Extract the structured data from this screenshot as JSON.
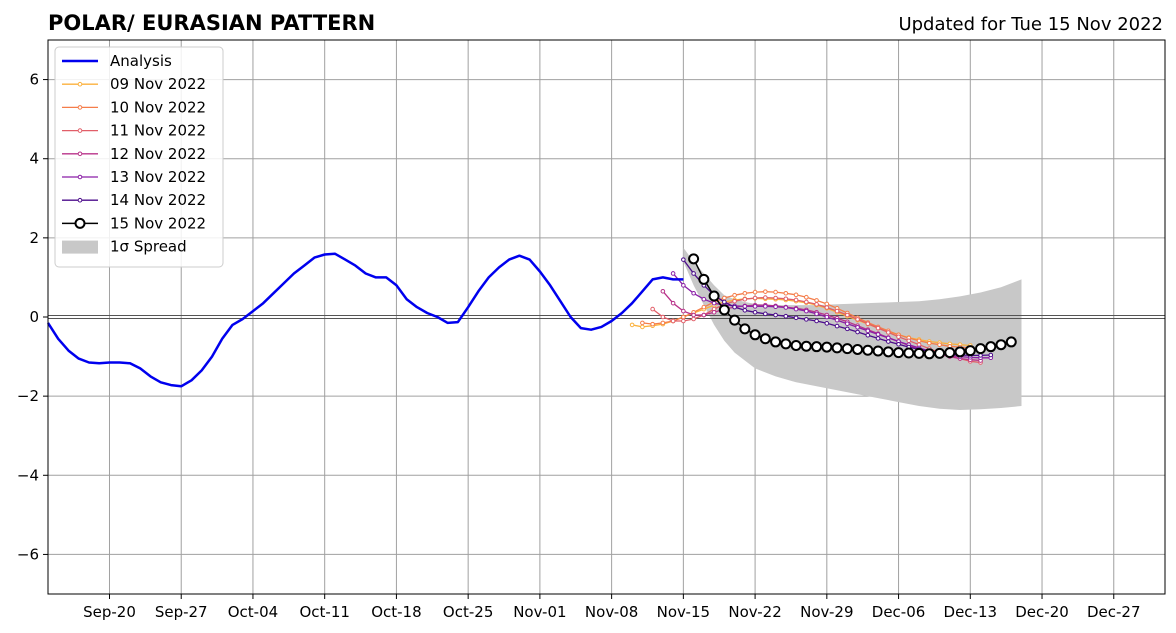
{
  "chart_data": {
    "type": "line",
    "title": "POLAR/ EURASIAN  PATTERN",
    "subtitle": "Updated for Tue 15 Nov 2022",
    "xlabel": "",
    "ylabel": "",
    "x_range": [
      "2022-09-14",
      "2023-01-01"
    ],
    "ylim": [
      -7,
      7
    ],
    "grid": true,
    "legend_position": "top-left",
    "x_tick_labels": [
      {
        "date": "2022-09-20",
        "label": "Sep-20"
      },
      {
        "date": "2022-09-27",
        "label": "Sep-27"
      },
      {
        "date": "2022-10-04",
        "label": "Oct-04"
      },
      {
        "date": "2022-10-11",
        "label": "Oct-11"
      },
      {
        "date": "2022-10-18",
        "label": "Oct-18"
      },
      {
        "date": "2022-10-25",
        "label": "Oct-25"
      },
      {
        "date": "2022-11-01",
        "label": "Nov-01"
      },
      {
        "date": "2022-11-08",
        "label": "Nov-08"
      },
      {
        "date": "2022-11-15",
        "label": "Nov-15"
      },
      {
        "date": "2022-11-22",
        "label": "Nov-22"
      },
      {
        "date": "2022-11-29",
        "label": "Nov-29"
      },
      {
        "date": "2022-12-06",
        "label": "Dec-06"
      },
      {
        "date": "2022-12-13",
        "label": "Dec-13"
      },
      {
        "date": "2022-12-20",
        "label": "Dec-20"
      },
      {
        "date": "2022-12-27",
        "label": "Dec-27"
      }
    ],
    "y_ticks": [
      {
        "value": 6,
        "label": "6"
      },
      {
        "value": 4,
        "label": "4"
      },
      {
        "value": 2,
        "label": "2"
      },
      {
        "value": 0,
        "label": "0"
      },
      {
        "value": -2,
        "label": "−2"
      },
      {
        "value": -4,
        "label": "−4"
      },
      {
        "value": -6,
        "label": "−6"
      }
    ],
    "spread": {
      "name": "1σ Spread",
      "color": "#c8c8c8",
      "dates": [
        "2022-11-15",
        "2022-11-16",
        "2022-11-17",
        "2022-11-18",
        "2022-11-19",
        "2022-11-20",
        "2022-11-21",
        "2022-11-22",
        "2022-11-24",
        "2022-11-26",
        "2022-11-28",
        "2022-11-30",
        "2022-12-02",
        "2022-12-04",
        "2022-12-06",
        "2022-12-08",
        "2022-12-10",
        "2022-12-12",
        "2022-12-14",
        "2022-12-16",
        "2022-12-18"
      ],
      "upper": [
        1.75,
        1.4,
        1.1,
        0.8,
        0.55,
        0.45,
        0.38,
        0.33,
        0.3,
        0.3,
        0.3,
        0.32,
        0.34,
        0.36,
        0.38,
        0.4,
        0.45,
        0.52,
        0.62,
        0.75,
        0.95
      ],
      "lower": [
        1.4,
        0.8,
        0.3,
        -0.2,
        -0.6,
        -0.9,
        -1.1,
        -1.3,
        -1.5,
        -1.65,
        -1.75,
        -1.85,
        -1.95,
        -2.05,
        -2.15,
        -2.25,
        -2.32,
        -2.35,
        -2.33,
        -2.3,
        -2.25
      ]
    },
    "series": [
      {
        "name": "Analysis",
        "color": "#0000ee",
        "marker": "none",
        "dates": [
          "2022-09-14",
          "2022-09-15",
          "2022-09-16",
          "2022-09-17",
          "2022-09-18",
          "2022-09-19",
          "2022-09-20",
          "2022-09-21",
          "2022-09-22",
          "2022-09-23",
          "2022-09-24",
          "2022-09-25",
          "2022-09-26",
          "2022-09-27",
          "2022-09-28",
          "2022-09-29",
          "2022-09-30",
          "2022-10-01",
          "2022-10-02",
          "2022-10-03",
          "2022-10-04",
          "2022-10-05",
          "2022-10-06",
          "2022-10-07",
          "2022-10-08",
          "2022-10-09",
          "2022-10-10",
          "2022-10-11",
          "2022-10-12",
          "2022-10-13",
          "2022-10-14",
          "2022-10-15",
          "2022-10-16",
          "2022-10-17",
          "2022-10-18",
          "2022-10-19",
          "2022-10-20",
          "2022-10-21",
          "2022-10-22",
          "2022-10-23",
          "2022-10-24",
          "2022-10-25",
          "2022-10-26",
          "2022-10-27",
          "2022-10-28",
          "2022-10-29",
          "2022-10-30",
          "2022-10-31",
          "2022-11-01",
          "2022-11-02",
          "2022-11-03",
          "2022-11-04",
          "2022-11-05",
          "2022-11-06",
          "2022-11-07",
          "2022-11-08",
          "2022-11-09",
          "2022-11-10",
          "2022-11-11",
          "2022-11-12",
          "2022-11-13",
          "2022-11-14",
          "2022-11-15"
        ],
        "values": [
          -0.15,
          -0.55,
          -0.85,
          -1.05,
          -1.15,
          -1.17,
          -1.15,
          -1.15,
          -1.17,
          -1.3,
          -1.5,
          -1.65,
          -1.72,
          -1.75,
          -1.6,
          -1.35,
          -1.0,
          -0.55,
          -0.2,
          -0.05,
          0.15,
          0.35,
          0.6,
          0.85,
          1.1,
          1.3,
          1.5,
          1.58,
          1.6,
          1.45,
          1.3,
          1.1,
          1.0,
          1.0,
          0.8,
          0.45,
          0.25,
          0.1,
          0.0,
          -0.15,
          -0.13,
          0.25,
          0.65,
          1.0,
          1.25,
          1.45,
          1.55,
          1.45,
          1.15,
          0.8,
          0.4,
          0.0,
          -0.28,
          -0.32,
          -0.25,
          -0.1,
          0.1,
          0.35,
          0.65,
          0.95,
          1.0,
          0.95,
          0.95
        ]
      },
      {
        "name": "09 Nov 2022",
        "color": "#fbb13c",
        "marker": "dot",
        "dates": [
          "2022-11-10",
          "2022-11-11",
          "2022-11-12",
          "2022-11-13",
          "2022-11-14",
          "2022-11-15",
          "2022-11-16",
          "2022-11-17",
          "2022-11-18",
          "2022-11-19",
          "2022-11-20",
          "2022-11-21",
          "2022-11-22",
          "2022-11-23",
          "2022-11-24",
          "2022-11-25",
          "2022-11-26",
          "2022-11-27",
          "2022-11-28",
          "2022-11-29",
          "2022-11-30",
          "2022-12-01",
          "2022-12-02",
          "2022-12-03",
          "2022-12-04",
          "2022-12-05",
          "2022-12-06",
          "2022-12-07",
          "2022-12-08",
          "2022-12-09",
          "2022-12-10",
          "2022-12-11",
          "2022-12-12",
          "2022-12-13"
        ],
        "values": [
          -0.2,
          -0.25,
          -0.22,
          -0.18,
          -0.1,
          0.0,
          0.1,
          0.2,
          0.3,
          0.38,
          0.43,
          0.46,
          0.47,
          0.46,
          0.45,
          0.43,
          0.4,
          0.36,
          0.3,
          0.22,
          0.12,
          0.02,
          -0.08,
          -0.18,
          -0.28,
          -0.38,
          -0.45,
          -0.52,
          -0.57,
          -0.62,
          -0.65,
          -0.68,
          -0.7,
          -0.72
        ]
      },
      {
        "name": "10 Nov 2022",
        "color": "#f57d4a",
        "marker": "dot",
        "dates": [
          "2022-11-11",
          "2022-11-12",
          "2022-11-13",
          "2022-11-14",
          "2022-11-15",
          "2022-11-16",
          "2022-11-17",
          "2022-11-18",
          "2022-11-19",
          "2022-11-20",
          "2022-11-21",
          "2022-11-22",
          "2022-11-23",
          "2022-11-24",
          "2022-11-25",
          "2022-11-26",
          "2022-11-27",
          "2022-11-28",
          "2022-11-29",
          "2022-11-30",
          "2022-12-01",
          "2022-12-02",
          "2022-12-03",
          "2022-12-04",
          "2022-12-05",
          "2022-12-06",
          "2022-12-07",
          "2022-12-08",
          "2022-12-09",
          "2022-12-10",
          "2022-12-11",
          "2022-12-12",
          "2022-12-13"
        ],
        "values": [
          -0.15,
          -0.18,
          -0.15,
          -0.1,
          0.0,
          0.12,
          0.25,
          0.38,
          0.48,
          0.55,
          0.6,
          0.63,
          0.64,
          0.63,
          0.6,
          0.56,
          0.5,
          0.42,
          0.33,
          0.22,
          0.1,
          -0.02,
          -0.14,
          -0.25,
          -0.35,
          -0.45,
          -0.53,
          -0.6,
          -0.66,
          -0.7,
          -0.74,
          -0.76,
          -0.78
        ]
      },
      {
        "name": "11 Nov 2022",
        "color": "#e15e68",
        "marker": "dot",
        "dates": [
          "2022-11-12",
          "2022-11-13",
          "2022-11-14",
          "2022-11-15",
          "2022-11-16",
          "2022-11-17",
          "2022-11-18",
          "2022-11-19",
          "2022-11-20",
          "2022-11-21",
          "2022-11-22",
          "2022-11-23",
          "2022-11-24",
          "2022-11-25",
          "2022-11-26",
          "2022-11-27",
          "2022-11-28",
          "2022-11-29",
          "2022-11-30",
          "2022-12-01",
          "2022-12-02",
          "2022-12-03",
          "2022-12-04",
          "2022-12-05",
          "2022-12-06",
          "2022-12-07",
          "2022-12-08",
          "2022-12-09",
          "2022-12-10",
          "2022-12-11",
          "2022-12-12",
          "2022-12-13",
          "2022-12-14"
        ],
        "values": [
          0.2,
          0.0,
          -0.1,
          -0.1,
          -0.05,
          0.05,
          0.2,
          0.32,
          0.4,
          0.45,
          0.48,
          0.49,
          0.48,
          0.46,
          0.43,
          0.38,
          0.32,
          0.24,
          0.15,
          0.05,
          -0.06,
          -0.17,
          -0.28,
          -0.39,
          -0.5,
          -0.6,
          -0.7,
          -0.8,
          -0.9,
          -0.98,
          -1.05,
          -1.12,
          -1.15
        ]
      },
      {
        "name": "12 Nov 2022",
        "color": "#b83289",
        "marker": "dot",
        "dates": [
          "2022-11-13",
          "2022-11-14",
          "2022-11-15",
          "2022-11-16",
          "2022-11-17",
          "2022-11-18",
          "2022-11-19",
          "2022-11-20",
          "2022-11-21",
          "2022-11-22",
          "2022-11-23",
          "2022-11-24",
          "2022-11-25",
          "2022-11-26",
          "2022-11-27",
          "2022-11-28",
          "2022-11-29",
          "2022-11-30",
          "2022-12-01",
          "2022-12-02",
          "2022-12-03",
          "2022-12-04",
          "2022-12-05",
          "2022-12-06",
          "2022-12-07",
          "2022-12-08",
          "2022-12-09",
          "2022-12-10",
          "2022-12-11",
          "2022-12-12",
          "2022-12-13",
          "2022-12-14"
        ],
        "values": [
          0.65,
          0.35,
          0.15,
          0.05,
          0.05,
          0.12,
          0.2,
          0.25,
          0.28,
          0.3,
          0.3,
          0.28,
          0.25,
          0.22,
          0.18,
          0.12,
          0.05,
          -0.03,
          -0.12,
          -0.22,
          -0.32,
          -0.42,
          -0.52,
          -0.62,
          -0.72,
          -0.8,
          -0.88,
          -0.95,
          -1.0,
          -1.05,
          -1.08,
          -1.1
        ]
      },
      {
        "name": "13 Nov 2022",
        "color": "#8a1ea6",
        "marker": "dot",
        "dates": [
          "2022-11-14",
          "2022-11-15",
          "2022-11-16",
          "2022-11-17",
          "2022-11-18",
          "2022-11-19",
          "2022-11-20",
          "2022-11-21",
          "2022-11-22",
          "2022-11-23",
          "2022-11-24",
          "2022-11-25",
          "2022-11-26",
          "2022-11-27",
          "2022-11-28",
          "2022-11-29",
          "2022-11-30",
          "2022-12-01",
          "2022-12-02",
          "2022-12-03",
          "2022-12-04",
          "2022-12-05",
          "2022-12-06",
          "2022-12-07",
          "2022-12-08",
          "2022-12-09",
          "2022-12-10",
          "2022-12-11",
          "2022-12-12",
          "2022-12-13",
          "2022-12-14",
          "2022-12-15"
        ],
        "values": [
          1.1,
          0.8,
          0.6,
          0.45,
          0.35,
          0.3,
          0.28,
          0.27,
          0.27,
          0.27,
          0.26,
          0.24,
          0.2,
          0.15,
          0.08,
          0.0,
          -0.08,
          -0.17,
          -0.26,
          -0.35,
          -0.44,
          -0.53,
          -0.62,
          -0.7,
          -0.78,
          -0.86,
          -0.92,
          -0.97,
          -1.0,
          -1.02,
          -1.03,
          -1.03
        ]
      },
      {
        "name": "14 Nov 2022",
        "color": "#4b0c8b",
        "marker": "dot",
        "dates": [
          "2022-11-15",
          "2022-11-16",
          "2022-11-17",
          "2022-11-18",
          "2022-11-19",
          "2022-11-20",
          "2022-11-21",
          "2022-11-22",
          "2022-11-23",
          "2022-11-24",
          "2022-11-25",
          "2022-11-26",
          "2022-11-27",
          "2022-11-28",
          "2022-11-29",
          "2022-11-30",
          "2022-12-01",
          "2022-12-02",
          "2022-12-03",
          "2022-12-04",
          "2022-12-05",
          "2022-12-06",
          "2022-12-07",
          "2022-12-08",
          "2022-12-09",
          "2022-12-10",
          "2022-12-11",
          "2022-12-12",
          "2022-12-13",
          "2022-12-14",
          "2022-12-15"
        ],
        "values": [
          1.45,
          1.1,
          0.8,
          0.55,
          0.38,
          0.25,
          0.17,
          0.12,
          0.08,
          0.05,
          0.02,
          -0.02,
          -0.06,
          -0.1,
          -0.16,
          -0.23,
          -0.3,
          -0.38,
          -0.46,
          -0.54,
          -0.62,
          -0.69,
          -0.76,
          -0.82,
          -0.87,
          -0.91,
          -0.94,
          -0.96,
          -0.97,
          -0.97,
          -0.96
        ]
      },
      {
        "name": "15 Nov 2022",
        "color": "#000000",
        "marker": "circle",
        "dates": [
          "2022-11-16",
          "2022-11-17",
          "2022-11-18",
          "2022-11-19",
          "2022-11-20",
          "2022-11-21",
          "2022-11-22",
          "2022-11-23",
          "2022-11-24",
          "2022-11-25",
          "2022-11-26",
          "2022-11-27",
          "2022-11-28",
          "2022-11-29",
          "2022-11-30",
          "2022-12-01",
          "2022-12-02",
          "2022-12-03",
          "2022-12-04",
          "2022-12-05",
          "2022-12-06",
          "2022-12-07",
          "2022-12-08",
          "2022-12-09",
          "2022-12-10",
          "2022-12-11",
          "2022-12-12",
          "2022-12-13",
          "2022-12-14",
          "2022-12-15",
          "2022-12-16",
          "2022-12-17"
        ],
        "values": [
          1.47,
          0.95,
          0.53,
          0.18,
          -0.08,
          -0.3,
          -0.45,
          -0.55,
          -0.63,
          -0.68,
          -0.72,
          -0.74,
          -0.75,
          -0.76,
          -0.78,
          -0.8,
          -0.82,
          -0.84,
          -0.86,
          -0.88,
          -0.9,
          -0.91,
          -0.92,
          -0.93,
          -0.92,
          -0.9,
          -0.88,
          -0.85,
          -0.8,
          -0.75,
          -0.7,
          -0.63
        ]
      }
    ]
  }
}
